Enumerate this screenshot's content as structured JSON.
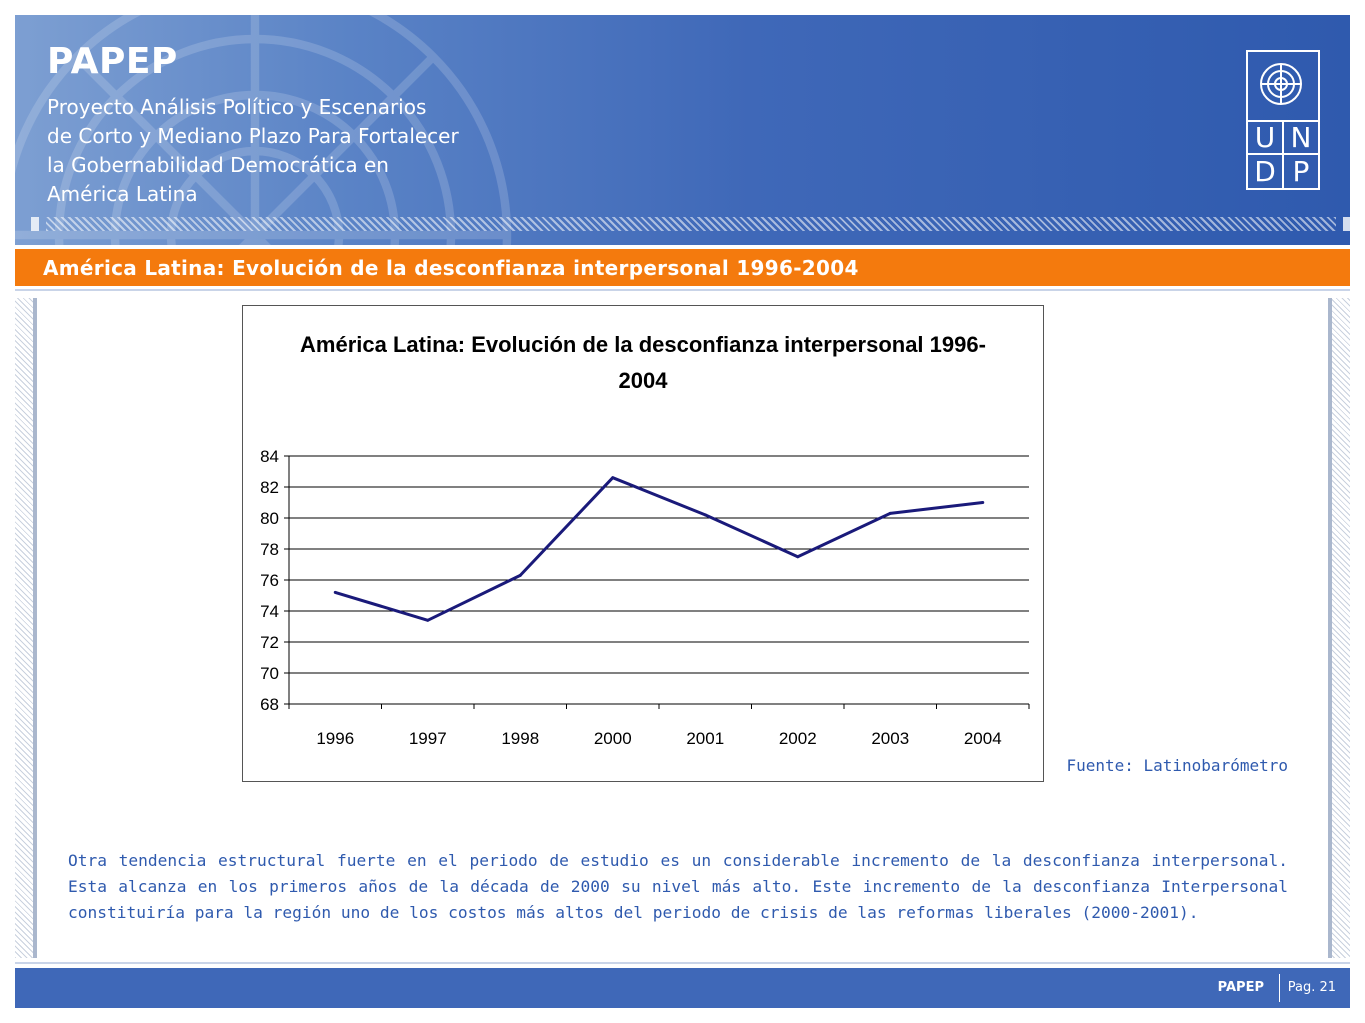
{
  "header": {
    "brand": "PAPEP",
    "subtitle_lines": [
      "Proyecto Análisis Político y Escenarios",
      "de Corto y Mediano Plazo Para Fortalecer",
      "la Gobernabilidad Democrática en",
      "América Latina"
    ],
    "logo_letters": [
      "U",
      "N",
      "D",
      "P"
    ],
    "logo_icon": "un-emblem-icon"
  },
  "title_bar": {
    "text": "América Latina: Evolución de la desconfianza interpersonal 1996-2004"
  },
  "chart_data": {
    "type": "line",
    "title_lines": [
      "América Latina: Evolución de la desconfianza interpersonal 1996-",
      "2004"
    ],
    "categories": [
      "1996",
      "1997",
      "1998",
      "2000",
      "2001",
      "2002",
      "2003",
      "2004"
    ],
    "series": [
      {
        "values": [
          75.2,
          73.4,
          76.3,
          82.6,
          80.2,
          77.5,
          80.3,
          81.0
        ],
        "color": "#1a1a7a"
      }
    ],
    "yticks": [
      "68",
      "70",
      "72",
      "74",
      "76",
      "78",
      "80",
      "82",
      "84"
    ],
    "ylim": [
      68,
      84
    ],
    "grid": true,
    "xlabel": "",
    "ylabel": ""
  },
  "source": "Fuente: Latinobarómetro",
  "body_text": "Otra tendencia estructural fuerte en el periodo de estudio es un considerable incremento de la desconfianza interpersonal. Esta alcanza en los primeros años de la década de 2000 su nivel más alto. Este incremento de la desconfianza Interpersonal constituiría para la región uno de los costos más altos del periodo de crisis de las reformas liberales (2000-2001).",
  "footer": {
    "brand": "PAPEP",
    "page": "Pag. 21"
  },
  "colors": {
    "header_blue": "#3f68b8",
    "accent_orange": "#f47a0d",
    "text_blue": "#2f5aae"
  }
}
